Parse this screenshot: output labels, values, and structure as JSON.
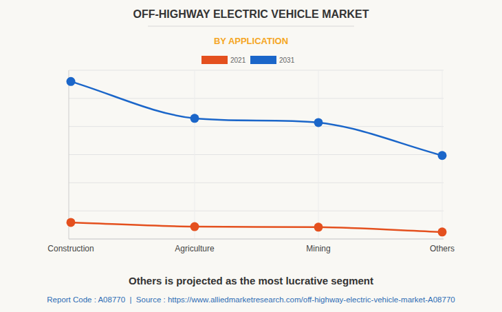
{
  "chart_data": {
    "type": "line",
    "title": "OFF-HIGHWAY ELECTRIC VEHICLE MARKET",
    "subtitle": "BY APPLICATION",
    "categories": [
      "Construction",
      "Agriculture",
      "Mining",
      "Others"
    ],
    "series": [
      {
        "name": "2021",
        "color": "#e4501e",
        "values": [
          0.59,
          0.44,
          0.42,
          0.25
        ]
      },
      {
        "name": "2031",
        "color": "#1b66c9",
        "values": [
          5.6,
          4.29,
          4.14,
          2.97
        ]
      }
    ],
    "ylim": [
      0,
      6
    ],
    "yticks": [
      0,
      1,
      2,
      3,
      4,
      5,
      6
    ],
    "grid": true,
    "tick_labels": "x",
    "legend": "top",
    "marker": "circle",
    "annotations": [
      "Others is projected as the most lucrative segment",
      "Report Code : A08770  |  Source : https://www.alliedmarketresearch.com/off-highway-electric-vehicle-market-A08770"
    ]
  }
}
